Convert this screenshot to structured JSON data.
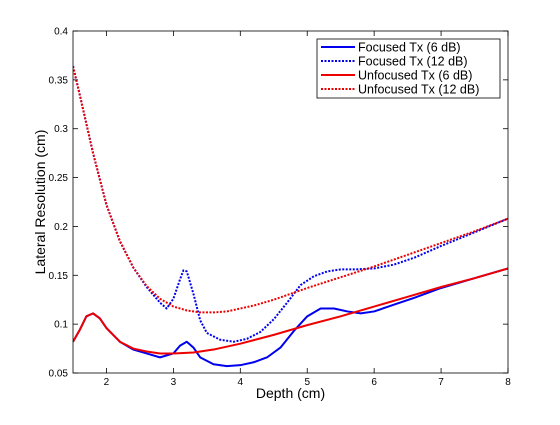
{
  "chart_data": {
    "type": "line",
    "title": "",
    "xlabel": "Depth (cm)",
    "ylabel": "Lateral Resolution (cm)",
    "xlim": [
      1.5,
      8
    ],
    "ylim": [
      0.05,
      0.4
    ],
    "xticks": [
      2,
      3,
      4,
      5,
      6,
      7,
      8
    ],
    "yticks": [
      0.05,
      0.1,
      0.15,
      0.2,
      0.25,
      0.3,
      0.35,
      0.4
    ],
    "ytick_labels": [
      "0.05",
      "0.1",
      "0.15",
      "0.2",
      "0.25",
      "0.3",
      "0.35",
      "0.4"
    ],
    "grid": false,
    "legend_position": "top-right",
    "series": [
      {
        "name": "Focused Tx (6 dB)",
        "color": "#0000ee",
        "style": "solid",
        "x": [
          1.5,
          1.6,
          1.7,
          1.8,
          1.9,
          2.0,
          2.2,
          2.4,
          2.6,
          2.8,
          3.0,
          3.1,
          3.2,
          3.3,
          3.4,
          3.6,
          3.8,
          4.0,
          4.2,
          4.4,
          4.6,
          4.8,
          5.0,
          5.2,
          5.4,
          5.6,
          5.8,
          6.0,
          6.3,
          6.6,
          7.0,
          7.5,
          8.0
        ],
        "y": [
          0.082,
          0.094,
          0.108,
          0.111,
          0.106,
          0.096,
          0.082,
          0.074,
          0.07,
          0.066,
          0.07,
          0.078,
          0.082,
          0.076,
          0.066,
          0.059,
          0.057,
          0.058,
          0.061,
          0.066,
          0.076,
          0.093,
          0.108,
          0.116,
          0.116,
          0.113,
          0.111,
          0.113,
          0.12,
          0.127,
          0.137,
          0.147,
          0.157
        ]
      },
      {
        "name": "Focused Tx (12 dB)",
        "color": "#0000ee",
        "style": "dotted",
        "x": [
          1.5,
          1.6,
          1.8,
          2.0,
          2.2,
          2.4,
          2.6,
          2.8,
          2.9,
          3.0,
          3.1,
          3.15,
          3.2,
          3.3,
          3.4,
          3.5,
          3.7,
          3.9,
          4.1,
          4.3,
          4.5,
          4.7,
          4.9,
          5.1,
          5.3,
          5.5,
          5.7,
          6.0,
          6.3,
          6.6,
          7.0,
          7.5,
          8.0
        ],
        "y": [
          0.364,
          0.335,
          0.275,
          0.222,
          0.185,
          0.158,
          0.138,
          0.122,
          0.116,
          0.126,
          0.146,
          0.155,
          0.154,
          0.131,
          0.104,
          0.091,
          0.084,
          0.082,
          0.085,
          0.092,
          0.105,
          0.122,
          0.14,
          0.149,
          0.154,
          0.156,
          0.156,
          0.157,
          0.161,
          0.168,
          0.18,
          0.194,
          0.208
        ]
      },
      {
        "name": "Unfocused Tx (6 dB)",
        "color": "#ee0000",
        "style": "solid",
        "x": [
          1.5,
          1.6,
          1.7,
          1.8,
          1.9,
          2.0,
          2.2,
          2.4,
          2.6,
          2.8,
          3.0,
          3.3,
          3.6,
          4.0,
          4.5,
          5.0,
          5.5,
          6.0,
          6.5,
          7.0,
          7.5,
          8.0
        ],
        "y": [
          0.082,
          0.094,
          0.108,
          0.111,
          0.106,
          0.096,
          0.082,
          0.075,
          0.072,
          0.07,
          0.07,
          0.071,
          0.074,
          0.08,
          0.089,
          0.099,
          0.108,
          0.118,
          0.128,
          0.138,
          0.147,
          0.157
        ]
      },
      {
        "name": "Unfocused Tx (12 dB)",
        "color": "#ee0000",
        "style": "dotted",
        "x": [
          1.5,
          1.6,
          1.8,
          2.0,
          2.2,
          2.4,
          2.6,
          2.8,
          3.0,
          3.2,
          3.4,
          3.6,
          3.8,
          4.0,
          4.2,
          4.5,
          5.0,
          5.5,
          6.0,
          6.5,
          7.0,
          7.5,
          8.0
        ],
        "y": [
          0.364,
          0.335,
          0.275,
          0.222,
          0.185,
          0.158,
          0.139,
          0.126,
          0.118,
          0.114,
          0.112,
          0.112,
          0.113,
          0.116,
          0.119,
          0.125,
          0.137,
          0.148,
          0.159,
          0.171,
          0.183,
          0.195,
          0.208
        ]
      }
    ]
  }
}
